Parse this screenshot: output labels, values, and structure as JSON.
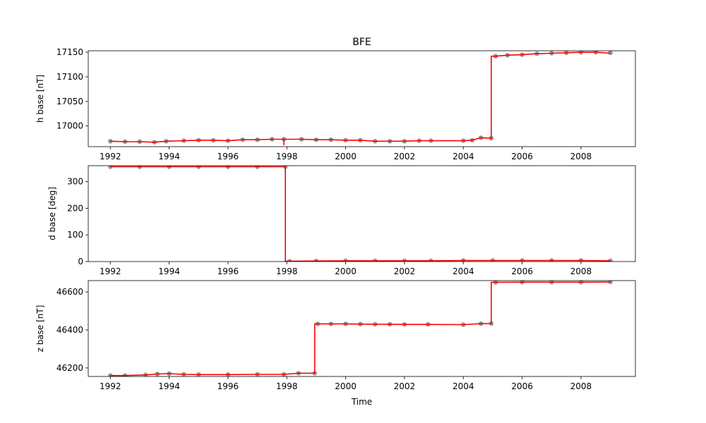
{
  "chart_data": [
    {
      "type": "line",
      "title": "BFE",
      "xlabel": "",
      "ylabel": "h base [nT]",
      "xlim": [
        1991.25,
        2009.85
      ],
      "ylim": [
        16958,
        17153
      ],
      "xticks": [
        1992,
        1994,
        1996,
        1998,
        2000,
        2002,
        2004,
        2006,
        2008
      ],
      "yticks": [
        17000,
        17050,
        17100,
        17150
      ],
      "colors": {
        "scatter": "#808080",
        "line": "#ff0000"
      },
      "series": [
        {
          "kind": "scatter",
          "x": [
            1992.0,
            1992.5,
            1993.0,
            1993.5,
            1993.9,
            1994.5,
            1995.0,
            1995.5,
            1996.0,
            1996.5,
            1997.0,
            1997.5,
            1997.9,
            1998.5,
            1999.0,
            1999.5,
            2000.0,
            2000.5,
            2001.0,
            2001.5,
            2002.0,
            2002.5,
            2002.9,
            2004.0,
            2004.3,
            2004.6,
            2004.95,
            2005.1,
            2005.5,
            2006.0,
            2006.5,
            2007.0,
            2007.5,
            2008.0,
            2008.5,
            2009.0
          ],
          "y": [
            16969,
            16968,
            16968,
            16967,
            16969,
            16970,
            16971,
            16971,
            16970,
            16972,
            16972,
            16973,
            16973,
            16973,
            16972,
            16972,
            16971,
            16971,
            16969,
            16969,
            16969,
            16970,
            16970,
            16970,
            16971,
            16976,
            16975,
            17142,
            17144,
            17145,
            17147,
            17148,
            17149,
            17150,
            17150,
            17149
          ]
        },
        {
          "kind": "line",
          "x": [
            1992.0,
            1992.5,
            1993.0,
            1993.5,
            1993.9,
            1994.5,
            1995.0,
            1995.5,
            1996.0,
            1996.5,
            1997.0,
            1997.5,
            1997.9,
            1997.9,
            1997.9,
            1998.5,
            1999.0,
            1999.5,
            2000.0,
            2000.5,
            2001.0,
            2001.5,
            2002.0,
            2002.5,
            2002.9,
            2004.0,
            2004.3,
            2004.6,
            2004.95,
            2004.95,
            2005.1,
            2005.5,
            2006.0,
            2006.5,
            2007.0,
            2007.5,
            2008.0,
            2008.5,
            2009.0
          ],
          "y": [
            16969,
            16968,
            16968,
            16967,
            16969,
            16970,
            16971,
            16971,
            16970,
            16972,
            16972,
            16973,
            16973,
            16962,
            16973,
            16973,
            16972,
            16972,
            16971,
            16971,
            16969,
            16969,
            16969,
            16970,
            16970,
            16970,
            16971,
            16976,
            16975,
            17142,
            17142,
            17144,
            17145,
            17147,
            17148,
            17149,
            17150,
            17150,
            17148
          ]
        }
      ]
    },
    {
      "type": "line",
      "title": "",
      "xlabel": "",
      "ylabel": "d base [deg]",
      "xlim": [
        1991.25,
        2009.85
      ],
      "ylim": [
        0,
        360
      ],
      "xticks": [
        1992,
        1994,
        1996,
        1998,
        2000,
        2002,
        2004,
        2006,
        2008
      ],
      "yticks": [
        0,
        100,
        200,
        300
      ],
      "colors": {
        "scatter": "#808080",
        "line": "#ff0000"
      },
      "series": [
        {
          "kind": "scatter",
          "x": [
            1992.0,
            1993.0,
            1994.0,
            1995.0,
            1996.0,
            1997.0,
            1997.95,
            1998.1,
            1999.0,
            2000.0,
            2001.0,
            2002.0,
            2002.9,
            2004.0,
            2005.0,
            2006.0,
            2007.0,
            2008.0,
            2009.0
          ],
          "y": [
            356,
            356,
            356,
            356,
            356,
            356,
            356,
            1,
            2,
            3,
            3,
            3,
            3,
            4,
            4,
            4,
            4,
            4,
            3
          ]
        },
        {
          "kind": "line",
          "x": [
            1992.0,
            1993.0,
            1994.0,
            1995.0,
            1996.0,
            1997.0,
            1997.95,
            1997.95,
            1999.0,
            2000.0,
            2001.0,
            2002.0,
            2002.9,
            2004.0,
            2005.0,
            2006.0,
            2007.0,
            2008.0,
            2009.0
          ],
          "y": [
            356,
            356,
            356,
            356,
            356,
            356,
            356,
            1,
            2,
            3,
            3,
            3,
            3,
            4,
            4,
            4,
            4,
            4,
            3
          ]
        }
      ]
    },
    {
      "type": "line",
      "title": "",
      "xlabel": "Time",
      "ylabel": "z base [nT]",
      "xlim": [
        1991.25,
        2009.85
      ],
      "ylim": [
        46155,
        46660
      ],
      "xticks": [
        1992,
        1994,
        1996,
        1998,
        2000,
        2002,
        2004,
        2006,
        2008
      ],
      "yticks": [
        46200,
        46400,
        46600
      ],
      "colors": {
        "scatter": "#808080",
        "line": "#ff0000"
      },
      "series": [
        {
          "kind": "scatter",
          "x": [
            1992.0,
            1992.5,
            1993.2,
            1993.6,
            1994.0,
            1994.5,
            1995.0,
            1996.0,
            1997.0,
            1997.9,
            1998.4,
            1998.95,
            1999.05,
            1999.5,
            2000.0,
            2000.5,
            2001.0,
            2001.5,
            2002.0,
            2002.8,
            2004.0,
            2004.6,
            2004.95,
            2005.1,
            2006.0,
            2007.0,
            2008.0,
            2009.0
          ],
          "y": [
            46160,
            46160,
            46163,
            46168,
            46170,
            46166,
            46165,
            46165,
            46166,
            46166,
            46172,
            46172,
            46432,
            46432,
            46432,
            46431,
            46430,
            46430,
            46429,
            46429,
            46428,
            46433,
            46434,
            46651,
            46652,
            46652,
            46652,
            46653
          ]
        },
        {
          "kind": "line",
          "x": [
            1992.0,
            1992.5,
            1993.2,
            1993.6,
            1994.0,
            1994.5,
            1995.0,
            1996.0,
            1997.0,
            1997.9,
            1998.4,
            1998.95,
            1998.95,
            1999.5,
            2000.0,
            2000.5,
            2001.0,
            2001.5,
            2002.0,
            2002.8,
            2004.0,
            2004.6,
            2004.95,
            2004.95,
            2006.0,
            2007.0,
            2008.0,
            2009.0
          ],
          "y": [
            46160,
            46160,
            46163,
            46168,
            46170,
            46166,
            46165,
            46165,
            46166,
            46166,
            46172,
            46172,
            46432,
            46432,
            46432,
            46431,
            46430,
            46430,
            46429,
            46429,
            46428,
            46433,
            46434,
            46651,
            46652,
            46652,
            46652,
            46653
          ]
        }
      ]
    }
  ]
}
